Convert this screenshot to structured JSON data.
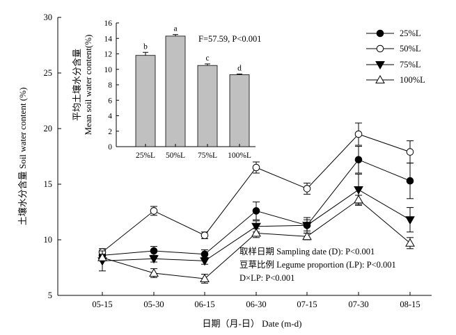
{
  "chart_data": [
    {
      "type": "line",
      "xlabel": "日期（月-日） Date (m-d)",
      "ylabel": "土壤水分含量 Soil water content (%)",
      "ylim": [
        5,
        30
      ],
      "yticks": [
        5,
        10,
        15,
        20,
        25,
        30
      ],
      "categories": [
        "05-15",
        "05-30",
        "06-15",
        "06-30",
        "07-15",
        "07-30",
        "08-15"
      ],
      "legend_position": "top-right",
      "grid": false,
      "series": [
        {
          "name": "25%L",
          "marker": "circle-filled",
          "values": [
            8.6,
            9.0,
            8.7,
            12.6,
            11.3,
            17.2,
            15.3
          ],
          "errors": [
            0.4,
            0.4,
            0.4,
            0.8,
            0.5,
            1.2,
            1.6
          ]
        },
        {
          "name": "50%L",
          "marker": "circle-open",
          "values": [
            8.9,
            12.6,
            10.4,
            16.5,
            14.6,
            19.5,
            17.9
          ],
          "errors": [
            0.3,
            0.4,
            0.3,
            0.5,
            0.5,
            1.0,
            1.0
          ]
        },
        {
          "name": "75%L",
          "marker": "triangle-down-filled",
          "values": [
            8.1,
            8.3,
            8.1,
            11.2,
            11.3,
            14.5,
            11.8
          ],
          "errors": [
            0.9,
            0.3,
            0.3,
            0.5,
            0.7,
            1.4,
            1.1
          ]
        },
        {
          "name": "100%L",
          "marker": "triangle-up-open",
          "values": [
            8.4,
            7.0,
            6.5,
            10.6,
            10.3,
            13.6,
            9.7
          ],
          "errors": [
            0.3,
            0.4,
            0.4,
            0.4,
            0.3,
            0.4,
            0.5
          ]
        }
      ],
      "annotations": [
        "取样日期 Sampling date (D): P<0.001",
        "豆草比例 Legume proportion (LP): P<0.001",
        "D×LP: P<0.001"
      ]
    },
    {
      "type": "bar",
      "ylabel_cn": "平均土壤水分含量",
      "ylabel_en": "Mean soil water content(%)",
      "ylim": [
        0,
        16
      ],
      "yticks": [
        0,
        2,
        4,
        6,
        8,
        10,
        12,
        14,
        16
      ],
      "categories": [
        "25%L",
        "50%L",
        "75%L",
        "100%L"
      ],
      "values": [
        11.8,
        14.3,
        10.5,
        9.3
      ],
      "errors": [
        0.4,
        0.2,
        0.2,
        0.1
      ],
      "letters": [
        "b",
        "a",
        "c",
        "d"
      ],
      "stat": "F=57.59, P<0.001",
      "bar_color": "#c0c0c0"
    }
  ]
}
